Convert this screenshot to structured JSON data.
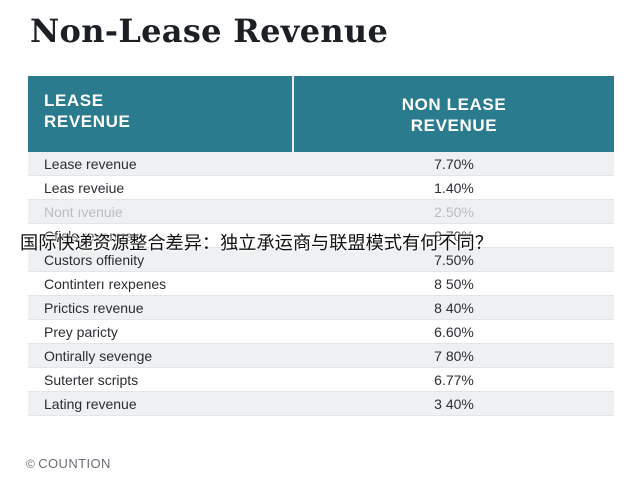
{
  "page": {
    "title": "Non-Lease Revenue"
  },
  "table": {
    "header": {
      "left_line1": "LEASE",
      "left_line2": "REVENUE",
      "right_line1": "NON LEASE",
      "right_line2": "REVENUE"
    },
    "rows": [
      {
        "label": "Lease revenue",
        "value": "7.70%"
      },
      {
        "label": "Leas reveiue",
        "value": "1.40%"
      },
      {
        "label": "Nont ıvenuie",
        "value": "2.50%"
      },
      {
        "label": "Cficls revenue",
        "value": "8.70%"
      },
      {
        "label": "Custors offienity",
        "value": "7.50%"
      },
      {
        "label": "Continterı rexpenes",
        "value": "8 50%"
      },
      {
        "label": "Prictics revenue",
        "value": "8 40%"
      },
      {
        "label": "Prey paricty",
        "value": "6.60%"
      },
      {
        "label": "Ontirally sevenge",
        "value": "7 80%"
      },
      {
        "label": "Suterter scripts",
        "value": "6.77%"
      },
      {
        "label": "Lating revenue",
        "value": "3 40%"
      }
    ]
  },
  "overlay": {
    "caption": "国际快递资源整合差异：独立承运商与联盟模式有何不同？"
  },
  "footer": {
    "icon": "copyright-icon",
    "icon_glyph": "©",
    "text": "COUNTION"
  }
}
